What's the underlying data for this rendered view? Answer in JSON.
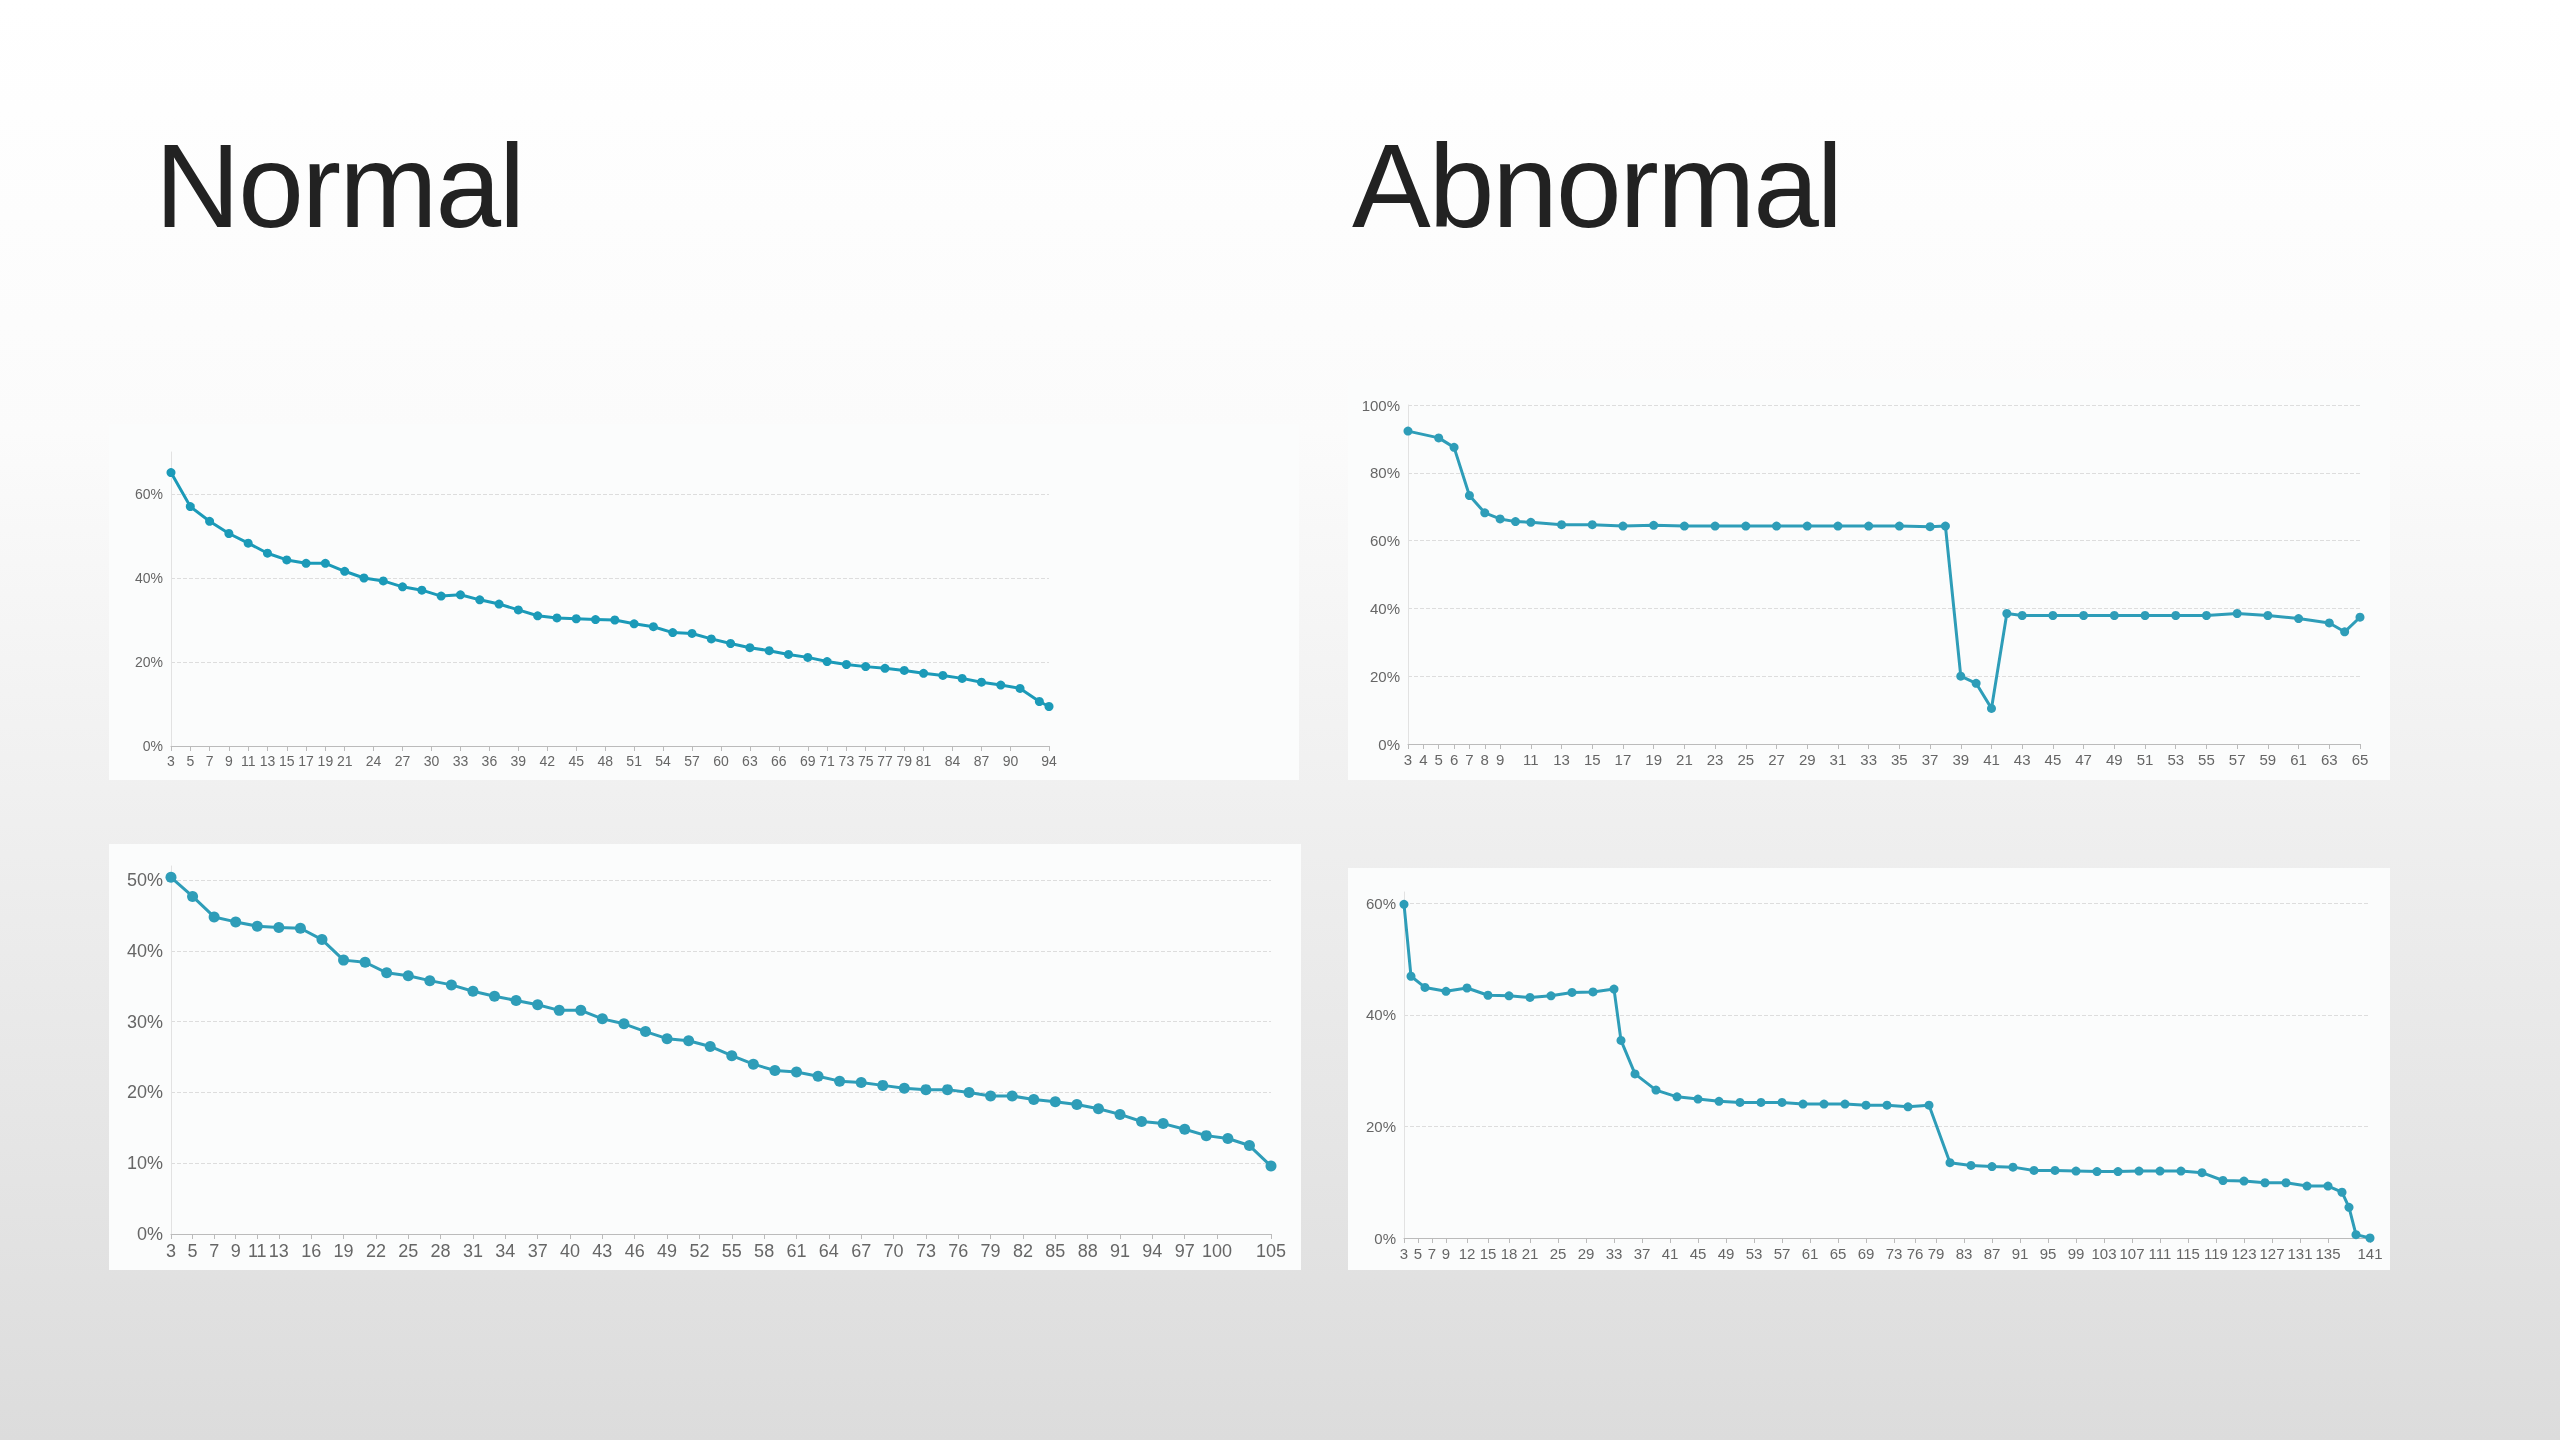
{
  "chart_data": [
    {
      "type": "line",
      "title": "Normal",
      "grid": "y",
      "marker": "circle",
      "line_style": "solid",
      "xlim": [
        3,
        94
      ],
      "xticks": [
        3,
        5,
        7,
        9,
        11,
        13,
        15,
        17,
        19,
        21,
        24,
        27,
        30,
        33,
        36,
        39,
        42,
        45,
        48,
        51,
        54,
        57,
        60,
        63,
        66,
        69,
        71,
        73,
        75,
        77,
        79,
        81,
        84,
        87,
        90,
        94
      ],
      "ylim": [
        0,
        70
      ],
      "yticks": [
        {
          "value": 0,
          "label": "0%"
        },
        {
          "value": 20,
          "label": "20%"
        },
        {
          "value": 40,
          "label": "40%"
        },
        {
          "value": 60,
          "label": "60%"
        }
      ],
      "series": [
        {
          "color": "#1b9ab8",
          "x": [
            3,
            5,
            7,
            9,
            11,
            13,
            15,
            17,
            19,
            21,
            23,
            25,
            27,
            29,
            31,
            33,
            35,
            37,
            39,
            41,
            43,
            45,
            47,
            49,
            51,
            53,
            55,
            57,
            59,
            61,
            63,
            65,
            67,
            69,
            71,
            73,
            75,
            77,
            79,
            81,
            83,
            85,
            87,
            89,
            91,
            93,
            94
          ],
          "values": [
            65.1,
            57.0,
            53.5,
            50.6,
            48.3,
            45.9,
            44.3,
            43.5,
            43.5,
            41.6,
            40.0,
            39.3,
            37.9,
            37.1,
            35.7,
            36.0,
            34.8,
            33.8,
            32.4,
            31.0,
            30.5,
            30.3,
            30.1,
            30.0,
            29.1,
            28.4,
            27.0,
            26.8,
            25.5,
            24.4,
            23.4,
            22.7,
            21.8,
            21.1,
            20.1,
            19.4,
            18.9,
            18.5,
            18.0,
            17.3,
            16.8,
            16.1,
            15.2,
            14.5,
            13.7,
            10.6,
            9.4
          ]
        }
      ]
    },
    {
      "type": "line",
      "title": "Abnormal",
      "grid": "y",
      "marker": "circle",
      "line_style": "solid",
      "xlim": [
        3,
        65
      ],
      "xticks": [
        3,
        4,
        5,
        6,
        7,
        8,
        9,
        11,
        13,
        15,
        17,
        19,
        21,
        23,
        25,
        27,
        29,
        31,
        33,
        35,
        37,
        39,
        41,
        43,
        45,
        47,
        49,
        51,
        53,
        55,
        57,
        59,
        61,
        63,
        65
      ],
      "ylim": [
        0,
        100
      ],
      "yticks": [
        {
          "value": 0,
          "label": "0%"
        },
        {
          "value": 20,
          "label": "20%"
        },
        {
          "value": 40,
          "label": "40%"
        },
        {
          "value": 60,
          "label": "60%"
        },
        {
          "value": 80,
          "label": "80%"
        },
        {
          "value": 100,
          "label": "100%"
        }
      ],
      "series": [
        {
          "color": "#2e9db8",
          "x": [
            3,
            5,
            6,
            7,
            8,
            9,
            10,
            11,
            13,
            15,
            17,
            19,
            21,
            23,
            25,
            27,
            29,
            31,
            33,
            35,
            37,
            38,
            39,
            40,
            41,
            42,
            43,
            45,
            47,
            49,
            51,
            53,
            55,
            57,
            59,
            61,
            63,
            64,
            65
          ],
          "values": [
            92.3,
            90.3,
            87.5,
            73.3,
            68.2,
            66.4,
            65.6,
            65.4,
            64.7,
            64.7,
            64.3,
            64.5,
            64.3,
            64.3,
            64.3,
            64.3,
            64.3,
            64.3,
            64.3,
            64.3,
            64.1,
            64.3,
            20.0,
            17.9,
            10.5,
            38.5,
            37.9,
            37.9,
            37.9,
            37.9,
            37.9,
            37.9,
            37.9,
            38.5,
            37.9,
            37.0,
            35.7,
            33.1,
            37.4
          ]
        }
      ]
    },
    {
      "type": "line",
      "grid": "y",
      "marker": "circle",
      "line_style": "solid",
      "xlim": [
        3,
        105
      ],
      "xticks": [
        3,
        5,
        7,
        9,
        11,
        13,
        16,
        19,
        22,
        25,
        28,
        31,
        34,
        37,
        40,
        43,
        46,
        49,
        52,
        55,
        58,
        61,
        64,
        67,
        70,
        73,
        76,
        79,
        82,
        85,
        88,
        91,
        94,
        97,
        100,
        105
      ],
      "ylim": [
        0,
        52
      ],
      "yticks": [
        {
          "value": 0,
          "label": "0%"
        },
        {
          "value": 10,
          "label": "10%"
        },
        {
          "value": 20,
          "label": "20%"
        },
        {
          "value": 30,
          "label": "30%"
        },
        {
          "value": 40,
          "label": "40%"
        },
        {
          "value": 50,
          "label": "50%"
        }
      ],
      "series": [
        {
          "color": "#2e9db8",
          "x": [
            3,
            5,
            7,
            9,
            11,
            13,
            15,
            17,
            19,
            21,
            23,
            25,
            27,
            29,
            31,
            33,
            35,
            37,
            39,
            41,
            43,
            45,
            47,
            49,
            51,
            53,
            55,
            57,
            59,
            61,
            63,
            65,
            67,
            69,
            71,
            73,
            75,
            77,
            79,
            81,
            83,
            85,
            87,
            89,
            91,
            93,
            95,
            97,
            99,
            101,
            103,
            105
          ],
          "values": [
            50.4,
            47.7,
            44.8,
            44.1,
            43.5,
            43.3,
            43.2,
            41.6,
            38.7,
            38.4,
            36.9,
            36.5,
            35.8,
            35.2,
            34.3,
            33.6,
            33.0,
            32.4,
            31.6,
            31.6,
            30.4,
            29.7,
            28.6,
            27.6,
            27.3,
            26.5,
            25.2,
            24.0,
            23.1,
            22.9,
            22.3,
            21.6,
            21.4,
            21.0,
            20.6,
            20.4,
            20.4,
            20.0,
            19.5,
            19.5,
            19.0,
            18.7,
            18.3,
            17.7,
            16.9,
            15.9,
            15.6,
            14.8,
            13.9,
            13.5,
            12.5,
            9.6
          ]
        }
      ]
    },
    {
      "type": "line",
      "grid": "y",
      "marker": "circle",
      "line_style": "solid",
      "xlim": [
        3,
        141
      ],
      "xticks": [
        3,
        5,
        7,
        9,
        12,
        15,
        18,
        21,
        25,
        29,
        33,
        37,
        41,
        45,
        49,
        53,
        57,
        61,
        65,
        69,
        73,
        76,
        79,
        83,
        87,
        91,
        95,
        99,
        103,
        107,
        111,
        115,
        119,
        123,
        127,
        131,
        135,
        141
      ],
      "ylim": [
        0,
        62
      ],
      "yticks": [
        {
          "value": 0,
          "label": "0%"
        },
        {
          "value": 20,
          "label": "20%"
        },
        {
          "value": 40,
          "label": "40%"
        },
        {
          "value": 60,
          "label": "60%"
        }
      ],
      "series": [
        {
          "color": "#2e9db8",
          "x": [
            3,
            4,
            6,
            9,
            12,
            15,
            18,
            21,
            24,
            27,
            30,
            33,
            34,
            36,
            39,
            42,
            45,
            48,
            51,
            54,
            57,
            60,
            63,
            66,
            69,
            72,
            75,
            78,
            81,
            84,
            87,
            90,
            93,
            96,
            99,
            102,
            105,
            108,
            111,
            114,
            117,
            120,
            123,
            126,
            129,
            132,
            135,
            137,
            138,
            139,
            141
          ],
          "values": [
            59.8,
            46.9,
            44.9,
            44.2,
            44.8,
            43.5,
            43.4,
            43.1,
            43.4,
            44.0,
            44.1,
            44.6,
            35.4,
            29.4,
            26.5,
            25.3,
            24.9,
            24.5,
            24.3,
            24.3,
            24.3,
            24.0,
            24.0,
            24.0,
            23.8,
            23.8,
            23.5,
            23.8,
            13.5,
            13.0,
            12.8,
            12.7,
            12.1,
            12.1,
            12.0,
            11.9,
            11.9,
            12.0,
            12.0,
            12.0,
            11.7,
            10.3,
            10.2,
            9.9,
            9.9,
            9.3,
            9.3,
            8.2,
            5.5,
            0.6,
            0
          ]
        }
      ]
    }
  ]
}
